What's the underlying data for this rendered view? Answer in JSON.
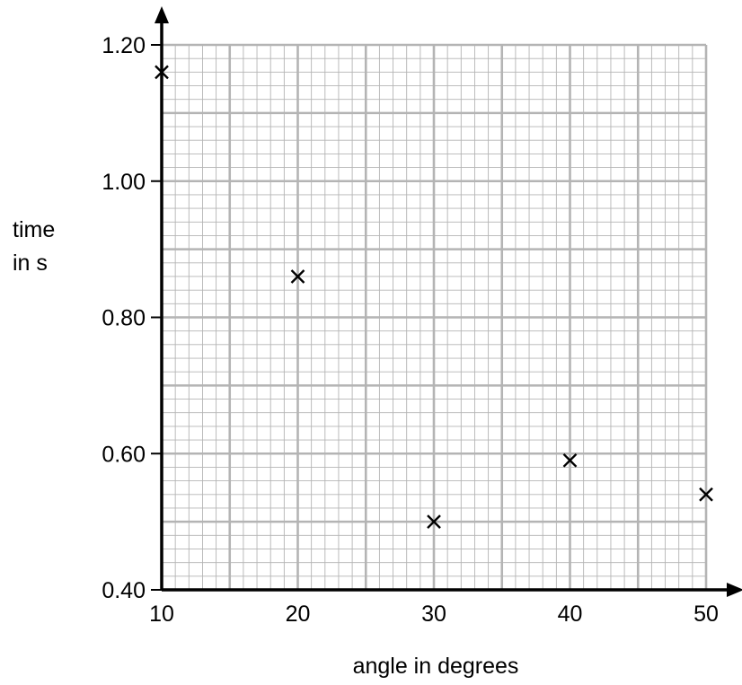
{
  "chart_data": {
    "type": "scatter",
    "title": "",
    "xlabel": "angle in degrees",
    "ylabel_lines": [
      "time",
      "in s"
    ],
    "xlim": [
      10,
      50
    ],
    "ylim": [
      0.4,
      1.2
    ],
    "x_ticks": [
      "10",
      "20",
      "30",
      "40",
      "50"
    ],
    "y_ticks": [
      "0.40",
      "0.60",
      "0.80",
      "1.00",
      "1.20"
    ],
    "x_tick_values": [
      10,
      20,
      30,
      40,
      50
    ],
    "y_tick_values": [
      0.4,
      0.6,
      0.8,
      1.0,
      1.2
    ],
    "grid": true,
    "marker": "cross",
    "points": [
      {
        "x": 10,
        "y": 1.16
      },
      {
        "x": 20,
        "y": 0.86
      },
      {
        "x": 30,
        "y": 0.5
      },
      {
        "x": 40,
        "y": 0.59
      },
      {
        "x": 50,
        "y": 0.54
      }
    ],
    "colors": {
      "major_grid": "#b4b4b4",
      "minor_grid": "#b4b4b4",
      "axis": "#000000",
      "marker": "#000000"
    }
  }
}
